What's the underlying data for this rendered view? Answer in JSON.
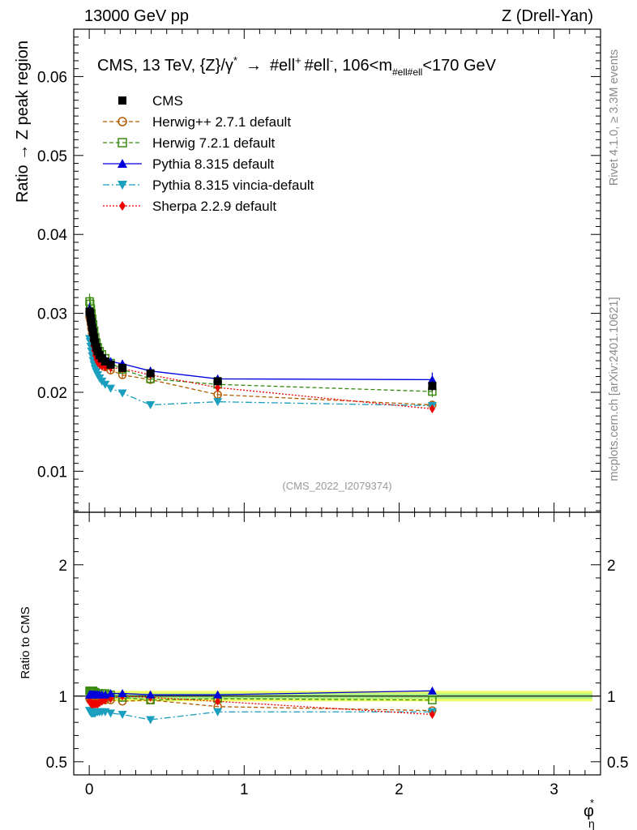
{
  "header": {
    "left": "13000 GeV pp",
    "right": "Z (Drell-Yan)"
  },
  "side_labels": {
    "rivet": "Rivet 4.1.0, ≥ 3.3M events",
    "mcplots": "mcplots.cern.ch [arXiv:2401.10621]"
  },
  "watermark": "(CMS_2022_I2079374)",
  "colors": {
    "herwigpp": "#b05a00",
    "herwig7": "#3a8a10",
    "pythia": "#0000dd",
    "vincia": "#1a9fbf",
    "sherpa": "#ee0000",
    "cms": "#000000",
    "band_outer": "#eeff66",
    "band_inner": "#aaee88"
  },
  "chart_data": [
    {
      "id": "main",
      "type": "line",
      "title_parts": {
        "prefix": "CMS, 13 TeV, {Z}/",
        "gamma": "γ",
        "star": "*",
        "arrow": "→",
        "ell1": "#ell",
        "plus": "+",
        "ell2": "#ell",
        "minus": "-",
        "mid": ", 106<m",
        "sub": "#ell#ell",
        "suffix": "<170 GeV"
      },
      "ylabel": "Ratio → Z peak region",
      "xlim": [
        -0.1,
        3.3
      ],
      "ylim": [
        0.0048,
        0.066
      ],
      "yticks": [
        0.01,
        0.02,
        0.03,
        0.04,
        0.05,
        0.06
      ],
      "ytick_labels": [
        "0.01",
        "0.02",
        "0.03",
        "0.04",
        "0.05",
        "0.06"
      ],
      "legend": {
        "position": "top-left",
        "entries": [
          {
            "key": "cms",
            "label": "CMS"
          },
          {
            "key": "herwigpp",
            "label": "Herwig++ 2.7.1 default"
          },
          {
            "key": "herwig7",
            "label": "Herwig 7.2.1 default"
          },
          {
            "key": "pythia",
            "label": "Pythia 8.315 default"
          },
          {
            "key": "vincia",
            "label": "Pythia 8.315 vincia-default"
          },
          {
            "key": "sherpa",
            "label": "Sherpa 2.2.9 default"
          }
        ]
      },
      "x": [
        0.002,
        0.006,
        0.01,
        0.014,
        0.019,
        0.025,
        0.031,
        0.038,
        0.046,
        0.055,
        0.067,
        0.082,
        0.103,
        0.138,
        0.214,
        0.395,
        0.829,
        2.214
      ],
      "series": [
        {
          "key": "cms",
          "name": "CMS",
          "values": [
            0.0302,
            0.03,
            0.0294,
            0.0289,
            0.0282,
            0.0276,
            0.0269,
            0.0263,
            0.0257,
            0.0252,
            0.0247,
            0.0243,
            0.0239,
            0.0235,
            0.0231,
            0.0224,
            0.0214,
            0.0208
          ],
          "errors": [
            0.0008,
            0.0008,
            0.0007,
            0.0007,
            0.0007,
            0.0006,
            0.0006,
            0.0006,
            0.0006,
            0.0006,
            0.0005,
            0.0005,
            0.0005,
            0.0005,
            0.0005,
            0.0005,
            0.0005,
            0.0006
          ]
        },
        {
          "key": "herwigpp",
          "name": "Herwig++ 2.7.1 default",
          "values": [
            0.0295,
            0.0292,
            0.0287,
            0.0281,
            0.0275,
            0.0269,
            0.0262,
            0.0256,
            0.025,
            0.0245,
            0.024,
            0.0236,
            0.0232,
            0.0228,
            0.0222,
            0.0216,
            0.0197,
            0.0184
          ],
          "errors": [
            0.0006,
            0.0006,
            0.0006,
            0.0005,
            0.0005,
            0.0005,
            0.0005,
            0.0005,
            0.0004,
            0.0004,
            0.0004,
            0.0004,
            0.0004,
            0.0004,
            0.0004,
            0.0004,
            0.0004,
            0.0005
          ]
        },
        {
          "key": "herwig7",
          "name": "Herwig 7.2.1 default",
          "values": [
            0.0315,
            0.0312,
            0.0306,
            0.03,
            0.0293,
            0.0286,
            0.0278,
            0.027,
            0.0263,
            0.0257,
            0.0252,
            0.0248,
            0.0243,
            0.0237,
            0.0229,
            0.0217,
            0.021,
            0.0201
          ],
          "errors": [
            0.001,
            0.0009,
            0.0009,
            0.0008,
            0.0008,
            0.0007,
            0.0007,
            0.0007,
            0.0007,
            0.0006,
            0.0006,
            0.0006,
            0.0006,
            0.0006,
            0.0005,
            0.0005,
            0.0005,
            0.0007
          ]
        },
        {
          "key": "pythia",
          "name": "Pythia 8.315 default",
          "values": [
            0.0306,
            0.0303,
            0.0298,
            0.0292,
            0.0286,
            0.0279,
            0.0272,
            0.0266,
            0.0259,
            0.0254,
            0.025,
            0.0246,
            0.0242,
            0.0239,
            0.0236,
            0.0227,
            0.0217,
            0.0216
          ],
          "errors": [
            0.0007,
            0.0007,
            0.0006,
            0.0006,
            0.0006,
            0.0006,
            0.0005,
            0.0005,
            0.0005,
            0.0005,
            0.0005,
            0.0005,
            0.0005,
            0.0005,
            0.0005,
            0.0005,
            0.0005,
            0.0009
          ]
        },
        {
          "key": "vincia",
          "name": "Pythia 8.315 vincia-default",
          "values": [
            0.0268,
            0.0264,
            0.0258,
            0.0252,
            0.0246,
            0.024,
            0.0235,
            0.023,
            0.0226,
            0.0222,
            0.0218,
            0.0214,
            0.021,
            0.0205,
            0.0199,
            0.0184,
            0.0188,
            0.0183
          ],
          "errors": [
            0.0006,
            0.0006,
            0.0006,
            0.0005,
            0.0005,
            0.0005,
            0.0005,
            0.0005,
            0.0004,
            0.0004,
            0.0004,
            0.0004,
            0.0004,
            0.0004,
            0.0004,
            0.0004,
            0.0004,
            0.0005
          ]
        },
        {
          "key": "sherpa",
          "name": "Sherpa 2.2.9 default",
          "values": [
            0.029,
            0.0285,
            0.0279,
            0.0273,
            0.0266,
            0.0259,
            0.0253,
            0.0247,
            0.0242,
            0.0238,
            0.0235,
            0.0233,
            0.0232,
            0.0231,
            0.023,
            0.0222,
            0.0206,
            0.0179
          ],
          "errors": [
            0.0006,
            0.0006,
            0.0006,
            0.0005,
            0.0005,
            0.0005,
            0.0005,
            0.0005,
            0.0005,
            0.0005,
            0.0004,
            0.0004,
            0.0004,
            0.0004,
            0.0004,
            0.0004,
            0.0005,
            0.0005
          ]
        }
      ]
    },
    {
      "id": "ratio",
      "type": "line",
      "ylabel": "Ratio to CMS",
      "xlabel_main": "φ",
      "xlabel_sup": "*",
      "xlabel_sub": "η",
      "ylim": [
        0.4,
        2.4
      ],
      "yticks": [
        0.5,
        1,
        2
      ],
      "ytick_labels": [
        "0.5",
        "1",
        "2"
      ],
      "xticks": [
        0,
        1,
        2,
        3
      ],
      "xtick_labels": [
        "0",
        "1",
        "2",
        "3"
      ],
      "band": {
        "inner": 0.02,
        "outer": 0.04
      },
      "x": [
        0.002,
        0.006,
        0.01,
        0.014,
        0.019,
        0.025,
        0.031,
        0.038,
        0.046,
        0.055,
        0.067,
        0.082,
        0.103,
        0.138,
        0.214,
        0.395,
        0.829,
        2.214
      ],
      "series": [
        {
          "key": "herwigpp",
          "name": "Herwig++ 2.7.1 default",
          "values": [
            0.98,
            0.97,
            0.98,
            0.97,
            0.98,
            0.97,
            0.97,
            0.97,
            0.97,
            0.97,
            0.97,
            0.97,
            0.97,
            0.97,
            0.96,
            0.97,
            0.92,
            0.89
          ]
        },
        {
          "key": "herwig7",
          "name": "Herwig 7.2.1 default",
          "values": [
            1.04,
            1.04,
            1.04,
            1.04,
            1.04,
            1.04,
            1.03,
            1.03,
            1.02,
            1.02,
            1.02,
            1.02,
            1.02,
            1.01,
            0.99,
            0.97,
            0.98,
            0.97
          ]
        },
        {
          "key": "pythia",
          "name": "Pythia 8.315 default",
          "values": [
            1.01,
            1.01,
            1.01,
            1.01,
            1.01,
            1.01,
            1.01,
            1.01,
            1.01,
            1.01,
            1.01,
            1.01,
            1.01,
            1.02,
            1.02,
            1.01,
            1.01,
            1.04
          ]
        },
        {
          "key": "vincia",
          "name": "Pythia 8.315 vincia-default",
          "values": [
            0.89,
            0.88,
            0.88,
            0.87,
            0.87,
            0.87,
            0.87,
            0.87,
            0.88,
            0.88,
            0.88,
            0.88,
            0.88,
            0.87,
            0.86,
            0.82,
            0.88,
            0.88
          ]
        },
        {
          "key": "sherpa",
          "name": "Sherpa 2.2.9 default",
          "values": [
            0.96,
            0.95,
            0.95,
            0.94,
            0.94,
            0.94,
            0.94,
            0.94,
            0.94,
            0.94,
            0.95,
            0.96,
            0.97,
            0.98,
            1.0,
            0.99,
            0.96,
            0.86
          ]
        }
      ]
    }
  ]
}
